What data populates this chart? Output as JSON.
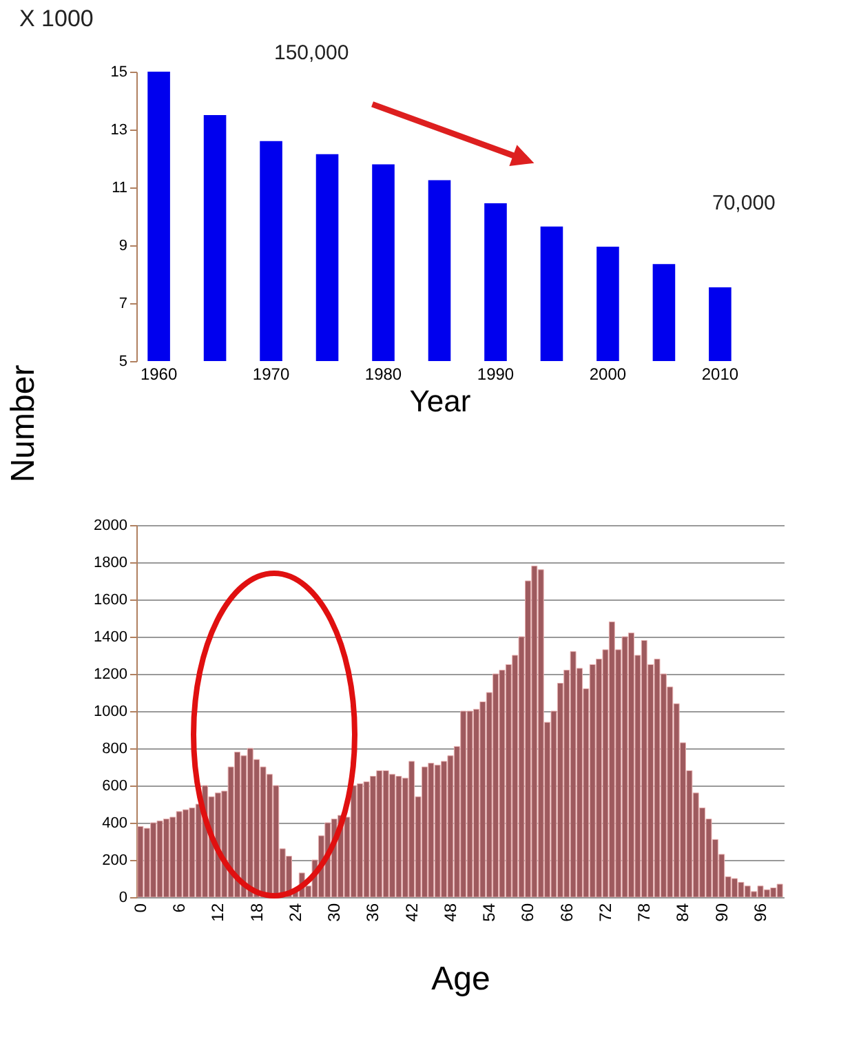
{
  "chart_data": [
    {
      "type": "bar",
      "categories": [
        "1960",
        null,
        "1970",
        null,
        "1980",
        null,
        "1990",
        null,
        "2000",
        null,
        "2010"
      ],
      "values": [
        15,
        13.5,
        12.6,
        12.15,
        11.8,
        11.25,
        10.45,
        9.65,
        8.95,
        8.35,
        7.55
      ],
      "color": "#0000ee",
      "ylim": [
        5,
        15
      ],
      "yticks": [
        5,
        7,
        9,
        11,
        13,
        15
      ],
      "xlabel": "Year",
      "ylabel": "Number",
      "annotations": [
        "X 1000",
        "150,000",
        "70,000"
      ],
      "grid": false
    },
    {
      "type": "bar",
      "categories": [
        "0",
        null,
        null,
        null,
        null,
        null,
        "6",
        null,
        null,
        null,
        null,
        null,
        "12",
        null,
        null,
        null,
        null,
        null,
        "18",
        null,
        null,
        null,
        null,
        null,
        "24",
        null,
        null,
        null,
        null,
        null,
        "30",
        null,
        null,
        null,
        null,
        null,
        "36",
        null,
        null,
        null,
        null,
        null,
        "42",
        null,
        null,
        null,
        null,
        null,
        "48",
        null,
        null,
        null,
        null,
        null,
        "54",
        null,
        null,
        null,
        null,
        null,
        "60",
        null,
        null,
        null,
        null,
        null,
        "66",
        null,
        null,
        null,
        null,
        null,
        "72",
        null,
        null,
        null,
        null,
        null,
        "78",
        null,
        null,
        null,
        null,
        null,
        "84",
        null,
        null,
        null,
        null,
        null,
        "90",
        null,
        null,
        null,
        null,
        null,
        "96",
        null,
        null,
        null
      ],
      "values": [
        380,
        370,
        400,
        410,
        420,
        430,
        460,
        470,
        480,
        500,
        600,
        540,
        560,
        570,
        700,
        780,
        760,
        800,
        740,
        700,
        660,
        600,
        260,
        220,
        40,
        130,
        60,
        200,
        330,
        400,
        420,
        440,
        430,
        600,
        610,
        620,
        650,
        680,
        680,
        660,
        650,
        640,
        730,
        540,
        700,
        720,
        710,
        730,
        760,
        810,
        1000,
        1000,
        1010,
        1050,
        1100,
        1200,
        1220,
        1250,
        1300,
        1400,
        1700,
        1780,
        1760,
        940,
        1000,
        1150,
        1220,
        1320,
        1230,
        1120,
        1250,
        1280,
        1330,
        1480,
        1330,
        1400,
        1420,
        1300,
        1380,
        1250,
        1280,
        1200,
        1130,
        1040,
        830,
        680,
        560,
        480,
        420,
        310,
        230,
        110,
        100,
        80,
        60,
        30,
        60,
        40,
        50,
        70
      ],
      "color": "#9e5a5e",
      "ylim": [
        0,
        2000
      ],
      "yticks": [
        0,
        200,
        400,
        600,
        800,
        1000,
        1200,
        1400,
        1600,
        1800,
        2000
      ],
      "xlabel": "Age",
      "grid": "y"
    }
  ]
}
